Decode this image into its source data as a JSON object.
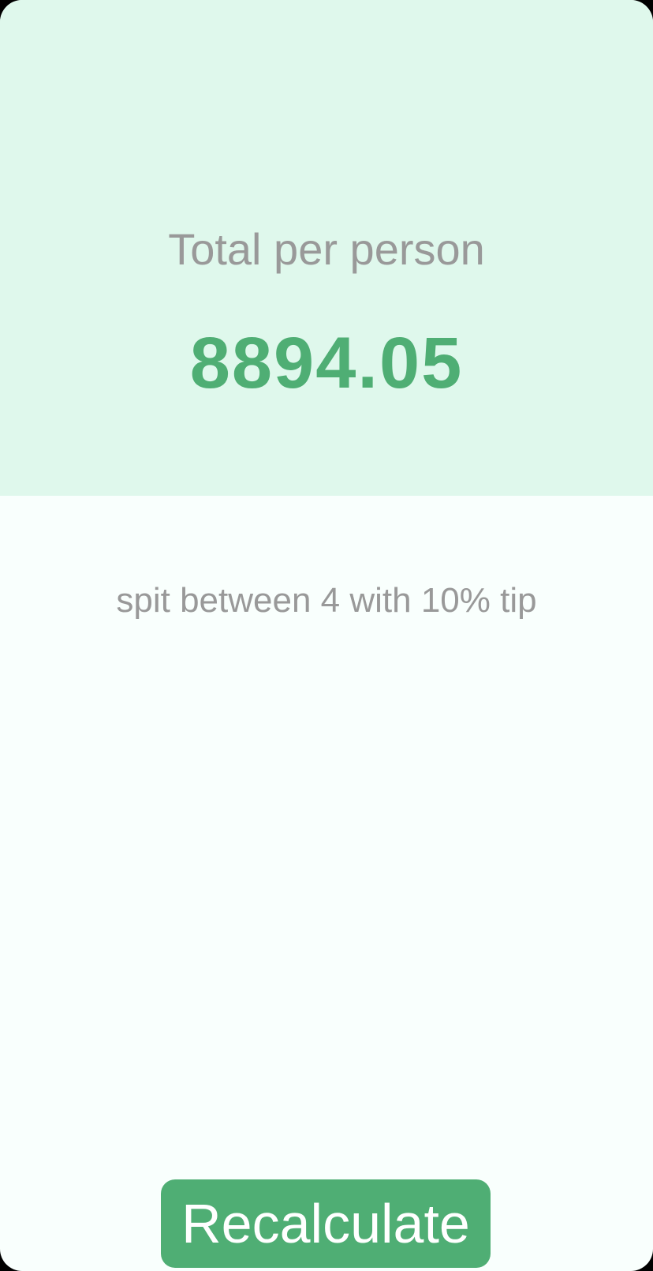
{
  "result": {
    "label": "Total per person",
    "value": "8894.05"
  },
  "summary": {
    "text": "spit between 4 with 10% tip"
  },
  "actions": {
    "recalculate_label": "Recalculate"
  },
  "colors": {
    "accent": "#4FAE74",
    "panel_background": "#DFF8EC",
    "page_background": "#F9FFFD",
    "muted_text": "#999999"
  }
}
